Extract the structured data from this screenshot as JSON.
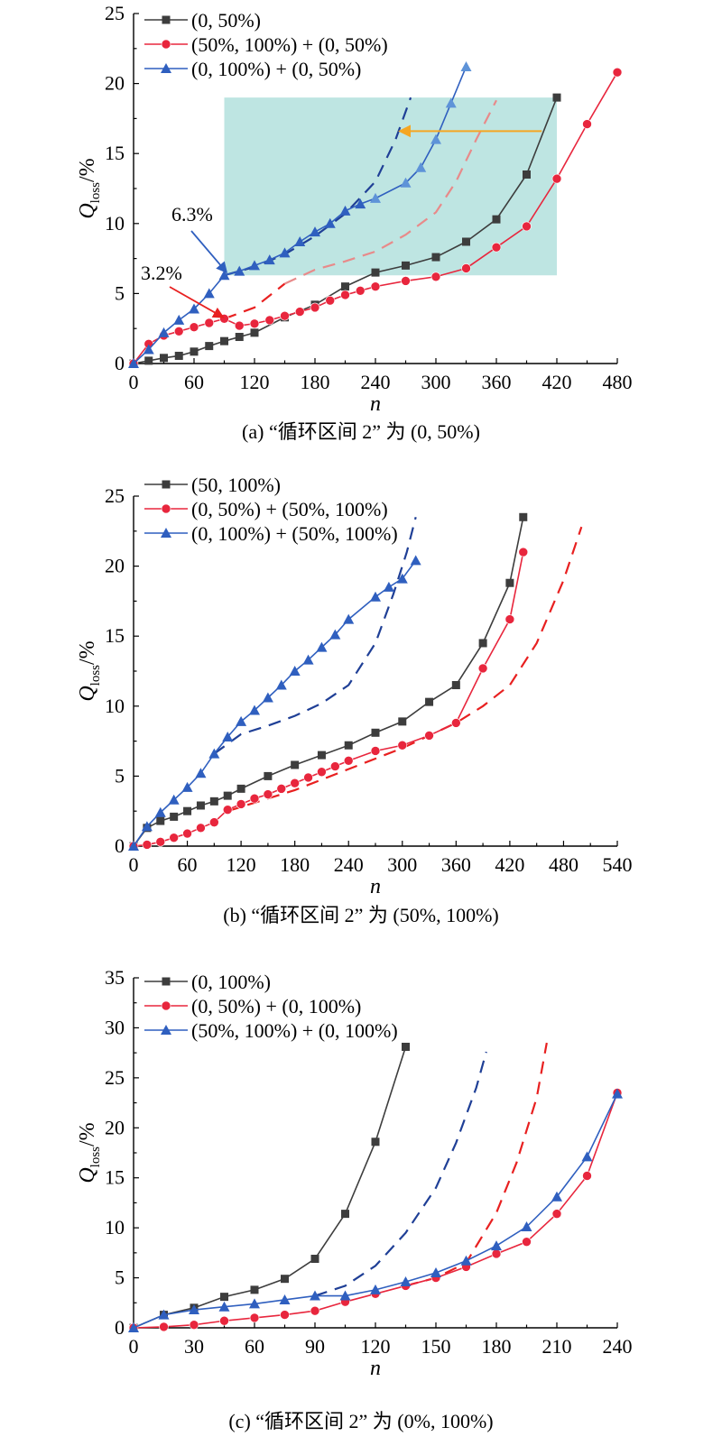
{
  "colors": {
    "black": "#3d3d3d",
    "red": "#e8263d",
    "blue": "#2f5fbf",
    "blue_light": "#5e93d8",
    "dash_blue": "#1f3f96",
    "dash_red": "#e82020",
    "dash_red_faded": "#e88a8a",
    "band": "#a8dcd8",
    "arrow_orange": "#f5a623"
  },
  "chart_data": [
    {
      "id": "a",
      "type": "line",
      "caption": "(a) “循环区间 2” 为 (0, 50%)",
      "xlabel": "n",
      "ylabel_main": "Q",
      "ylabel_sub": "loss",
      "ylabel_unit": "/%",
      "xlim": [
        0,
        480
      ],
      "ylim": [
        0,
        25
      ],
      "xticks": [
        0,
        60,
        120,
        180,
        240,
        300,
        360,
        420,
        480
      ],
      "yticks": [
        0,
        5,
        10,
        15,
        20,
        25
      ],
      "series": [
        {
          "name": "(0, 50%)",
          "marker": "square",
          "color": "black",
          "x": [
            0,
            15,
            30,
            45,
            60,
            75,
            90,
            105,
            120,
            150,
            180,
            210,
            240,
            270,
            300,
            330,
            360,
            390,
            420
          ],
          "y": [
            0,
            0.2,
            0.4,
            0.55,
            0.85,
            1.25,
            1.6,
            1.9,
            2.2,
            3.3,
            4.2,
            5.5,
            6.5,
            7.0,
            7.6,
            8.7,
            10.3,
            13.5,
            19.0
          ]
        },
        {
          "name": "(50%, 100%) + (0, 50%)",
          "marker": "circle",
          "color": "red",
          "x": [
            0,
            15,
            30,
            45,
            60,
            75,
            90,
            105,
            120,
            135,
            150,
            165,
            180,
            195,
            210,
            225,
            240,
            270,
            300,
            330,
            360,
            390,
            420,
            450,
            480
          ],
          "y": [
            0,
            1.4,
            2.0,
            2.3,
            2.6,
            2.9,
            3.2,
            2.7,
            2.85,
            3.1,
            3.4,
            3.7,
            4.0,
            4.5,
            4.9,
            5.2,
            5.5,
            5.9,
            6.2,
            6.8,
            8.3,
            9.8,
            13.2,
            17.1,
            20.8
          ]
        },
        {
          "name": "(0, 100%) + (0, 50%)",
          "marker": "triangle",
          "color": "blue",
          "x": [
            0,
            15,
            30,
            45,
            60,
            75,
            90,
            105,
            120,
            135,
            150,
            165,
            180,
            195,
            210,
            225,
            240,
            270,
            285,
            300,
            315,
            330
          ],
          "y": [
            0,
            1.0,
            2.2,
            3.1,
            3.9,
            5.0,
            6.3,
            6.6,
            7.0,
            7.4,
            7.9,
            8.7,
            9.4,
            10.0,
            10.9,
            11.4,
            11.8,
            12.9,
            14.0,
            16.0,
            18.6,
            21.2
          ]
        }
      ],
      "dashed": [
        {
          "color": "dash_blue",
          "x": [
            90,
            120,
            150,
            180,
            210,
            240,
            260,
            275
          ],
          "y": [
            6.3,
            6.9,
            7.8,
            9.1,
            10.7,
            13.0,
            16.0,
            19.0
          ]
        },
        {
          "color": "dash_red",
          "x": [
            90,
            120,
            150
          ],
          "y": [
            3.2,
            4.0,
            5.7
          ]
        },
        {
          "color": "dash_red_faded",
          "x": [
            150,
            180,
            210,
            240,
            270,
            300,
            320,
            340,
            360
          ],
          "y": [
            5.7,
            6.7,
            7.3,
            8.0,
            9.2,
            10.8,
            13.0,
            16.0,
            18.8
          ]
        }
      ],
      "band": {
        "x": [
          90,
          420
        ],
        "y": [
          6.3,
          19.0
        ]
      },
      "annotations": [
        {
          "text": "6.3%",
          "x": 90,
          "y": 6.3
        },
        {
          "text": "3.2%",
          "x": 90,
          "y": 3.2
        }
      ],
      "arrow": {
        "from": [
          405,
          16.6
        ],
        "to": [
          265,
          16.6
        ]
      },
      "legend": "top-left"
    },
    {
      "id": "b",
      "type": "line",
      "caption": "(b) “循环区间 2” 为 (50%, 100%)",
      "xlabel": "n",
      "ylabel_main": "Q",
      "ylabel_sub": "loss",
      "ylabel_unit": "/%",
      "xlim": [
        0,
        540
      ],
      "ylim": [
        0,
        25
      ],
      "xticks": [
        0,
        60,
        120,
        180,
        240,
        300,
        360,
        420,
        480,
        540
      ],
      "yticks": [
        0,
        5,
        10,
        15,
        20,
        25
      ],
      "series": [
        {
          "name": "(50, 100%)",
          "marker": "square",
          "color": "black",
          "x": [
            0,
            15,
            30,
            45,
            60,
            75,
            90,
            105,
            120,
            150,
            180,
            210,
            240,
            270,
            300,
            330,
            360,
            390,
            420,
            435
          ],
          "y": [
            0,
            1.3,
            1.8,
            2.1,
            2.5,
            2.9,
            3.2,
            3.6,
            4.1,
            5.0,
            5.8,
            6.5,
            7.2,
            8.1,
            8.9,
            10.3,
            11.5,
            14.5,
            18.8,
            23.5
          ]
        },
        {
          "name": "(0, 50%) + (50%, 100%)",
          "marker": "circle",
          "color": "red",
          "x": [
            0,
            15,
            30,
            45,
            60,
            75,
            90,
            105,
            120,
            135,
            150,
            165,
            180,
            195,
            210,
            225,
            240,
            270,
            300,
            330,
            360,
            390,
            420,
            435
          ],
          "y": [
            0,
            0.1,
            0.3,
            0.6,
            0.9,
            1.3,
            1.7,
            2.6,
            3.0,
            3.4,
            3.7,
            4.1,
            4.5,
            4.9,
            5.3,
            5.7,
            6.1,
            6.8,
            7.2,
            7.9,
            8.8,
            12.7,
            16.2,
            21.0
          ]
        },
        {
          "name": "(0, 100%) + (50%, 100%)",
          "marker": "triangle",
          "color": "blue",
          "x": [
            0,
            15,
            30,
            45,
            60,
            75,
            90,
            105,
            120,
            135,
            150,
            165,
            180,
            195,
            210,
            225,
            240,
            270,
            285,
            300,
            315
          ],
          "y": [
            0,
            1.4,
            2.4,
            3.3,
            4.2,
            5.2,
            6.6,
            7.8,
            8.9,
            9.7,
            10.6,
            11.5,
            12.5,
            13.3,
            14.2,
            15.1,
            16.2,
            17.8,
            18.5,
            19.1,
            20.4
          ]
        }
      ],
      "dashed": [
        {
          "color": "dash_blue",
          "x": [
            90,
            120,
            150,
            180,
            210,
            240,
            270,
            290,
            305,
            315
          ],
          "y": [
            6.6,
            8.0,
            8.6,
            9.3,
            10.2,
            11.5,
            14.5,
            18.0,
            21.0,
            23.5
          ]
        },
        {
          "color": "dash_red",
          "x": [
            105,
            150,
            180,
            240,
            300,
            360,
            390,
            420,
            450,
            480,
            500
          ],
          "y": [
            2.5,
            3.4,
            4.0,
            5.5,
            7.0,
            8.8,
            10.0,
            11.5,
            14.5,
            19.0,
            22.8
          ]
        }
      ],
      "legend": "top-left"
    },
    {
      "id": "c",
      "type": "line",
      "caption": "(c) “循环区间 2” 为 (0%, 100%)",
      "xlabel": "n",
      "ylabel_main": "Q",
      "ylabel_sub": "loss",
      "ylabel_unit": "/%",
      "xlim": [
        0,
        240
      ],
      "ylim": [
        0,
        35
      ],
      "xticks": [
        0,
        30,
        60,
        90,
        120,
        150,
        180,
        210,
        240
      ],
      "yticks": [
        0,
        5,
        10,
        15,
        20,
        25,
        30,
        35
      ],
      "series": [
        {
          "name": "(0, 100%)",
          "marker": "square",
          "color": "black",
          "x": [
            0,
            15,
            30,
            45,
            60,
            75,
            90,
            105,
            120,
            135
          ],
          "y": [
            0,
            1.3,
            2.0,
            3.1,
            3.8,
            4.9,
            6.9,
            11.4,
            18.6,
            28.1
          ]
        },
        {
          "name": "(0, 50%) + (0, 100%)",
          "marker": "circle",
          "color": "red",
          "x": [
            0,
            15,
            30,
            45,
            60,
            75,
            90,
            105,
            120,
            135,
            150,
            165,
            180,
            195,
            210,
            225,
            240
          ],
          "y": [
            0,
            0.1,
            0.3,
            0.7,
            1.0,
            1.3,
            1.7,
            2.6,
            3.4,
            4.2,
            5.0,
            6.1,
            7.4,
            8.6,
            11.4,
            15.2,
            23.5
          ]
        },
        {
          "name": "(50%, 100%) + (0, 100%)",
          "marker": "triangle",
          "color": "blue",
          "x": [
            0,
            15,
            30,
            45,
            60,
            75,
            90,
            105,
            120,
            135,
            150,
            165,
            180,
            195,
            210,
            225,
            240
          ],
          "y": [
            0,
            1.3,
            1.8,
            2.1,
            2.4,
            2.8,
            3.2,
            3.2,
            3.8,
            4.6,
            5.5,
            6.7,
            8.2,
            10.1,
            13.1,
            17.1,
            23.4
          ]
        }
      ],
      "dashed": [
        {
          "color": "dash_blue",
          "x": [
            90,
            105,
            120,
            135,
            150,
            160,
            170,
            175
          ],
          "y": [
            3.2,
            4.2,
            6.2,
            9.5,
            14.0,
            18.5,
            24.0,
            27.6
          ]
        },
        {
          "color": "dash_red",
          "x": [
            135,
            150,
            165,
            180,
            190,
            200,
            205
          ],
          "y": [
            4.2,
            5.0,
            6.5,
            11.5,
            16.5,
            23.0,
            28.5
          ]
        }
      ],
      "legend": "top-left"
    }
  ]
}
